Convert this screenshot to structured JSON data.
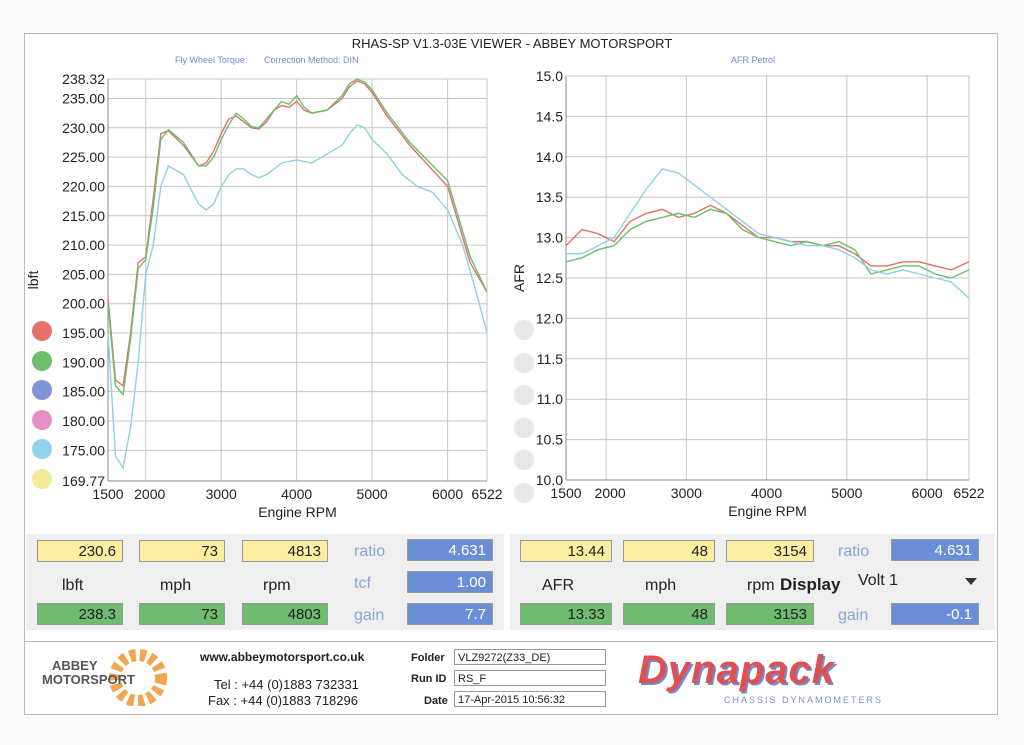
{
  "header": {
    "title": "RHAS-SP V1.3-03E VIEWER - ABBEY MOTORSPORT",
    "left_sub1": "Fly Wheel Torque:",
    "left_sub2": "Correction Method: DIN",
    "right_sub": "AFR Petrol"
  },
  "chart_data": [
    {
      "type": "line",
      "ylabel": "lbft",
      "xlabel": "Engine RPM",
      "xlim": [
        1500,
        6522
      ],
      "ylim": [
        169.77,
        238.32
      ],
      "xticks": [
        "1500",
        "2000",
        "3000",
        "4000",
        "5000",
        "6000",
        "6522"
      ],
      "yticks": [
        "238.32",
        "235.00",
        "230.00",
        "225.00",
        "220.00",
        "215.00",
        "210.00",
        "205.00",
        "200.00",
        "195.00",
        "190.00",
        "185.00",
        "180.00",
        "175.00",
        "169.77"
      ],
      "series": [
        {
          "color": "#e0706a",
          "x": [
            1500,
            1600,
            1700,
            1800,
            1900,
            2000,
            2100,
            2200,
            2300,
            2500,
            2700,
            2800,
            2900,
            3000,
            3100,
            3200,
            3300,
            3400,
            3500,
            3600,
            3700,
            3800,
            3900,
            4000,
            4100,
            4200,
            4400,
            4600,
            4700,
            4800,
            4900,
            5000,
            5200,
            5500,
            6000,
            6300,
            6522
          ],
          "y": [
            201,
            187,
            186,
            195,
            207,
            208,
            218,
            229,
            229.5,
            227,
            223.5,
            224,
            226,
            229,
            231.5,
            232,
            231,
            230,
            229.8,
            231,
            233,
            233.8,
            233.5,
            234.5,
            233,
            232.5,
            233,
            235,
            237,
            238,
            237.5,
            236,
            232,
            227,
            220,
            207,
            202
          ]
        },
        {
          "color": "#6cbf6c",
          "x": [
            1500,
            1600,
            1700,
            1800,
            1900,
            2000,
            2100,
            2200,
            2300,
            2500,
            2700,
            2800,
            2900,
            3000,
            3100,
            3200,
            3300,
            3400,
            3500,
            3600,
            3700,
            3800,
            3900,
            4000,
            4100,
            4200,
            4400,
            4600,
            4700,
            4800,
            4900,
            5000,
            5200,
            5500,
            6000,
            6300,
            6522
          ],
          "y": [
            200,
            186,
            184.5,
            194,
            206,
            207.5,
            216.5,
            228,
            229.7,
            227.5,
            223.5,
            223.5,
            225,
            228,
            230.5,
            232.5,
            231.5,
            230.2,
            230,
            231.5,
            233,
            234.5,
            234,
            235.5,
            233.5,
            232.5,
            233,
            235.5,
            237.5,
            238.3,
            237.8,
            236.5,
            232.5,
            227.5,
            221,
            208,
            202
          ]
        },
        {
          "color": "#8fd1e0",
          "x": [
            1500,
            1600,
            1700,
            1800,
            1900,
            2000,
            2100,
            2200,
            2300,
            2500,
            2700,
            2800,
            2900,
            3000,
            3100,
            3200,
            3300,
            3400,
            3500,
            3600,
            3800,
            4000,
            4200,
            4400,
            4600,
            4700,
            4800,
            4900,
            5000,
            5200,
            5400,
            5600,
            5800,
            6000,
            6200,
            6400,
            6522
          ],
          "y": [
            195,
            174,
            172,
            179,
            190,
            205,
            210,
            220,
            223.5,
            222,
            217,
            216,
            217,
            220,
            222,
            223,
            223,
            222,
            221.5,
            222,
            224,
            224.5,
            224,
            225.5,
            227,
            229,
            230.5,
            230,
            228,
            225.5,
            222,
            220,
            219,
            216,
            210,
            201,
            195
          ]
        }
      ]
    },
    {
      "type": "line",
      "ylabel": "AFR",
      "xlabel": "Engine RPM",
      "xlim": [
        1500,
        6522
      ],
      "ylim": [
        10.0,
        15.0
      ],
      "xticks": [
        "1500",
        "2000",
        "3000",
        "4000",
        "5000",
        "6000",
        "6522"
      ],
      "yticks": [
        "15.0",
        "14.5",
        "14.0",
        "13.5",
        "13.0",
        "12.5",
        "12.0",
        "11.5",
        "11.0",
        "10.5",
        "10.0"
      ],
      "series": [
        {
          "color": "#e0706a",
          "x": [
            1500,
            1700,
            1900,
            2100,
            2300,
            2500,
            2700,
            2900,
            3100,
            3300,
            3500,
            3700,
            3900,
            4100,
            4300,
            4500,
            4700,
            4900,
            5100,
            5300,
            5500,
            5700,
            5900,
            6100,
            6300,
            6522
          ],
          "y": [
            12.9,
            13.1,
            13.05,
            12.95,
            13.2,
            13.3,
            13.35,
            13.25,
            13.3,
            13.4,
            13.3,
            13.15,
            13.0,
            13.0,
            12.95,
            12.95,
            12.9,
            12.9,
            12.8,
            12.65,
            12.65,
            12.7,
            12.7,
            12.65,
            12.6,
            12.7
          ]
        },
        {
          "color": "#6cbf6c",
          "x": [
            1500,
            1700,
            1900,
            2100,
            2300,
            2500,
            2700,
            2900,
            3100,
            3300,
            3500,
            3700,
            3900,
            4100,
            4300,
            4500,
            4700,
            4900,
            5100,
            5300,
            5500,
            5700,
            5900,
            6100,
            6300,
            6522
          ],
          "y": [
            12.7,
            12.75,
            12.85,
            12.9,
            13.1,
            13.2,
            13.25,
            13.3,
            13.25,
            13.35,
            13.3,
            13.1,
            13.0,
            12.95,
            12.9,
            12.95,
            12.9,
            12.95,
            12.85,
            12.55,
            12.6,
            12.65,
            12.65,
            12.55,
            12.5,
            12.6
          ]
        },
        {
          "color": "#8fd1e0",
          "x": [
            1500,
            1700,
            1900,
            2100,
            2300,
            2500,
            2700,
            2900,
            3100,
            3300,
            3500,
            3700,
            3900,
            4100,
            4300,
            4500,
            4700,
            4900,
            5100,
            5300,
            5500,
            5700,
            5900,
            6100,
            6300,
            6522
          ],
          "y": [
            12.8,
            12.8,
            12.9,
            13.0,
            13.3,
            13.6,
            13.85,
            13.8,
            13.65,
            13.5,
            13.35,
            13.2,
            13.05,
            13.0,
            12.95,
            12.9,
            12.9,
            12.85,
            12.75,
            12.6,
            12.55,
            12.6,
            12.55,
            12.5,
            12.45,
            12.25
          ]
        }
      ]
    }
  ],
  "readouts": {
    "left": {
      "y1": "230.6",
      "y2": "73",
      "y3": "4813",
      "g1": "238.3",
      "g2": "73",
      "g3": "4803",
      "u1": "lbft",
      "u2": "mph",
      "u3": "rpm",
      "ratio_label": "ratio",
      "tcf_label": "tcf",
      "gain_label": "gain",
      "ratio": "4.631",
      "tcf": "1.00",
      "gain": "7.7"
    },
    "right": {
      "y1": "13.44",
      "y2": "48",
      "y3": "3154",
      "g1": "13.33",
      "g2": "48",
      "g3": "3153",
      "u1": "AFR",
      "u2": "mph",
      "u3": "rpm",
      "display_label": "Display",
      "display_value": "Volt 1",
      "ratio_label": "ratio",
      "gain_label": "gain",
      "ratio": "4.631",
      "gain": "-0.1"
    }
  },
  "footer": {
    "logo1": "ABBEY",
    "logo2": "MOTORSPORT",
    "web": "www.abbeymotorsport.co.uk",
    "tel": "Tel : +44 (0)1883 732331",
    "fax": "Fax : +44 (0)1883 718296",
    "folder_label": "Folder",
    "folder": "VLZ9272(Z33_DE)",
    "runid_label": "Run ID",
    "runid": "RS_F",
    "date_label": "Date",
    "date": "17-Apr-2015  10:56:32",
    "brand": "Dynapack",
    "brand_sub": "CHASSIS   DYNAMOMETERS"
  },
  "legend_colors": [
    "#e5736b",
    "#6fbd6f",
    "#7f94d8",
    "#e68fc7",
    "#8fd3ef",
    "#f5ea98"
  ],
  "afr_legend_colors": [
    "#e8e8e8",
    "#e8e8e8",
    "#e8e8e8",
    "#e8e8e8",
    "#e8e8e8",
    "#e8e8e8"
  ]
}
